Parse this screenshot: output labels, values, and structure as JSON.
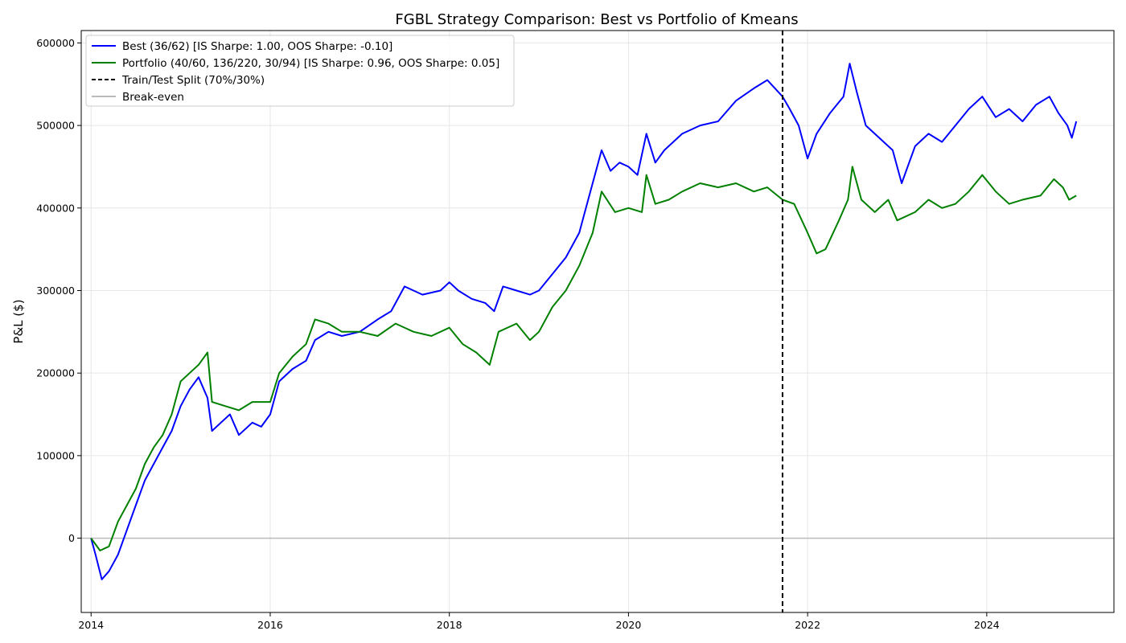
{
  "chart_data": {
    "type": "line",
    "title": "FGBL Strategy Comparison: Best vs Portfolio of Kmeans",
    "xlabel": "",
    "ylabel": "P&L ($)",
    "x_ticks": [
      "2014",
      "2016",
      "2018",
      "2020",
      "2022",
      "2024"
    ],
    "y_ticks": [
      "0",
      "100000",
      "200000",
      "300000",
      "400000",
      "500000",
      "600000"
    ],
    "xlim": [
      2013.89,
      2025.42
    ],
    "ylim": [
      -90000,
      615000
    ],
    "grid": true,
    "legend_position": "top-left",
    "split_x": 2021.72,
    "series": [
      {
        "name": "Best (36/62) [IS Sharpe: 1.00, OOS Sharpe: -0.10]",
        "color": "#0000ff",
        "x": [
          2014.0,
          2014.05,
          2014.12,
          2014.2,
          2014.3,
          2014.4,
          2014.5,
          2014.6,
          2014.7,
          2014.8,
          2014.9,
          2015.0,
          2015.1,
          2015.2,
          2015.3,
          2015.35,
          2015.45,
          2015.55,
          2015.65,
          2015.8,
          2015.9,
          2016.0,
          2016.1,
          2016.25,
          2016.4,
          2016.5,
          2016.65,
          2016.8,
          2017.0,
          2017.2,
          2017.35,
          2017.5,
          2017.7,
          2017.9,
          2018.0,
          2018.1,
          2018.25,
          2018.4,
          2018.5,
          2018.6,
          2018.75,
          2018.9,
          2019.0,
          2019.15,
          2019.3,
          2019.45,
          2019.55,
          2019.7,
          2019.8,
          2019.9,
          2020.0,
          2020.1,
          2020.2,
          2020.3,
          2020.4,
          2020.6,
          2020.8,
          2021.0,
          2021.2,
          2021.4,
          2021.55,
          2021.72,
          2021.8,
          2021.9,
          2022.0,
          2022.1,
          2022.25,
          2022.4,
          2022.47,
          2022.55,
          2022.65,
          2022.8,
          2022.95,
          2023.05,
          2023.2,
          2023.35,
          2023.5,
          2023.65,
          2023.8,
          2023.95,
          2024.1,
          2024.25,
          2024.4,
          2024.55,
          2024.7,
          2024.8,
          2024.9,
          2024.95,
          2025.0
        ],
        "values": [
          0,
          -20000,
          -50000,
          -40000,
          -20000,
          10000,
          40000,
          70000,
          90000,
          110000,
          130000,
          160000,
          180000,
          195000,
          170000,
          130000,
          140000,
          150000,
          125000,
          140000,
          135000,
          150000,
          190000,
          205000,
          215000,
          240000,
          250000,
          245000,
          250000,
          265000,
          275000,
          305000,
          295000,
          300000,
          310000,
          300000,
          290000,
          285000,
          275000,
          305000,
          300000,
          295000,
          300000,
          320000,
          340000,
          370000,
          410000,
          470000,
          445000,
          455000,
          450000,
          440000,
          490000,
          455000,
          470000,
          490000,
          500000,
          505000,
          530000,
          545000,
          555000,
          535000,
          520000,
          500000,
          460000,
          490000,
          515000,
          535000,
          575000,
          540000,
          500000,
          485000,
          470000,
          430000,
          475000,
          490000,
          480000,
          500000,
          520000,
          535000,
          510000,
          520000,
          505000,
          525000,
          535000,
          515000,
          500000,
          485000,
          505000
        ]
      },
      {
        "name": "Portfolio (40/60, 136/220, 30/94) [IS Sharpe: 0.96, OOS Sharpe: 0.05]",
        "color": "#008000",
        "x": [
          2014.0,
          2014.1,
          2014.2,
          2014.3,
          2014.4,
          2014.5,
          2014.6,
          2014.7,
          2014.8,
          2014.9,
          2015.0,
          2015.1,
          2015.2,
          2015.3,
          2015.35,
          2015.5,
          2015.65,
          2015.8,
          2016.0,
          2016.1,
          2016.25,
          2016.4,
          2016.5,
          2016.65,
          2016.8,
          2017.0,
          2017.2,
          2017.4,
          2017.6,
          2017.8,
          2018.0,
          2018.15,
          2018.3,
          2018.45,
          2018.55,
          2018.75,
          2018.9,
          2019.0,
          2019.15,
          2019.3,
          2019.45,
          2019.6,
          2019.7,
          2019.85,
          2020.0,
          2020.15,
          2020.2,
          2020.3,
          2020.45,
          2020.6,
          2020.8,
          2021.0,
          2021.2,
          2021.4,
          2021.55,
          2021.72,
          2021.85,
          2022.0,
          2022.1,
          2022.2,
          2022.35,
          2022.45,
          2022.5,
          2022.6,
          2022.75,
          2022.9,
          2023.0,
          2023.2,
          2023.35,
          2023.5,
          2023.65,
          2023.8,
          2023.95,
          2024.1,
          2024.25,
          2024.4,
          2024.6,
          2024.75,
          2024.85,
          2024.92,
          2025.0
        ],
        "values": [
          0,
          -15000,
          -10000,
          20000,
          40000,
          60000,
          90000,
          110000,
          125000,
          150000,
          190000,
          200000,
          210000,
          225000,
          165000,
          160000,
          155000,
          165000,
          165000,
          200000,
          220000,
          235000,
          265000,
          260000,
          250000,
          250000,
          245000,
          260000,
          250000,
          245000,
          255000,
          235000,
          225000,
          210000,
          250000,
          260000,
          240000,
          250000,
          280000,
          300000,
          330000,
          370000,
          420000,
          395000,
          400000,
          395000,
          440000,
          405000,
          410000,
          420000,
          430000,
          425000,
          430000,
          420000,
          425000,
          410000,
          405000,
          370000,
          345000,
          350000,
          385000,
          410000,
          450000,
          410000,
          395000,
          410000,
          385000,
          395000,
          410000,
          400000,
          405000,
          420000,
          440000,
          420000,
          405000,
          410000,
          415000,
          435000,
          425000,
          410000,
          415000
        ]
      },
      {
        "name": "Train/Test Split (70%/30%)",
        "color": "#000000"
      },
      {
        "name": "Break-even",
        "color": "#bbbbbb"
      }
    ]
  }
}
